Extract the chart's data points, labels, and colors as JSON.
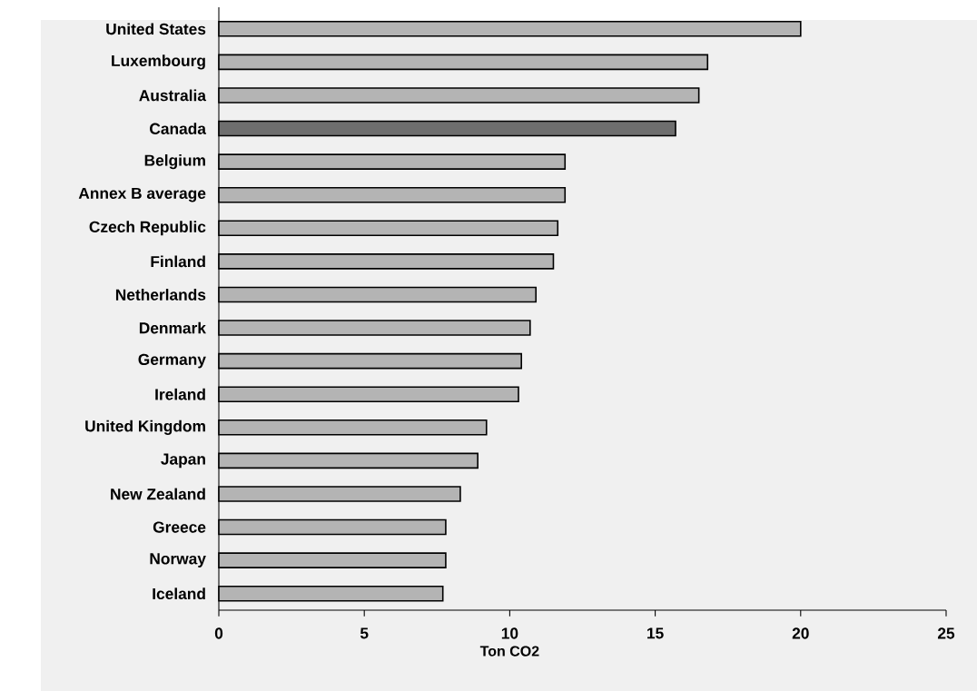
{
  "chart_data": {
    "type": "bar",
    "orientation": "horizontal",
    "xlabel": "Ton CO2",
    "categories": [
      "United States",
      "Luxembourg",
      "Australia",
      "Canada",
      "Belgium",
      "Annex B average",
      "Czech Republic",
      "Finland",
      "Netherlands",
      "Denmark",
      "Germany",
      "Ireland",
      "United Kingdom",
      "Japan",
      "New Zealand",
      "Greece",
      "Norway",
      "Iceland"
    ],
    "values": [
      20.0,
      16.8,
      16.5,
      15.7,
      11.9,
      11.9,
      11.65,
      11.5,
      10.9,
      10.7,
      10.4,
      10.3,
      9.2,
      8.9,
      8.3,
      7.8,
      7.8,
      7.7
    ],
    "colors": [
      "#b4b4b4",
      "#b4b4b4",
      "#b4b4b4",
      "#6e6e6e",
      "#b4b4b4",
      "#b4b4b4",
      "#b4b4b4",
      "#b4b4b4",
      "#b4b4b4",
      "#b4b4b4",
      "#b4b4b4",
      "#b4b4b4",
      "#b4b4b4",
      "#b4b4b4",
      "#b4b4b4",
      "#b4b4b4",
      "#b4b4b4",
      "#b4b4b4"
    ],
    "xlim": [
      0,
      25
    ],
    "xticks": [
      0,
      5,
      10,
      15,
      20,
      25
    ],
    "grid": false
  }
}
